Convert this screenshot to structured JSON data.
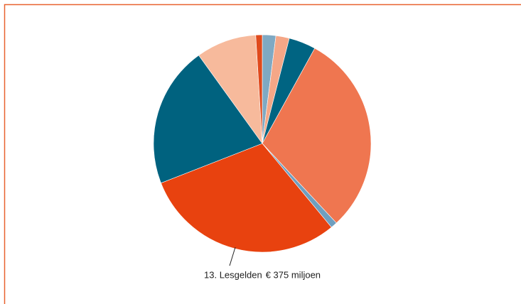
{
  "chart_data": {
    "type": "pie",
    "categories": [
      null,
      null,
      null,
      null,
      null,
      "13. Lesgelden",
      null,
      null,
      null
    ],
    "values": [
      25,
      25,
      50,
      375,
      12,
      375,
      262,
      112,
      12
    ],
    "value_labels": [
      null,
      null,
      null,
      null,
      null,
      "€ 375 miljoen",
      null,
      null,
      null
    ],
    "colors": [
      "#7fa9c3",
      "#f5a787",
      "#006482",
      "#ef7650",
      "#6f9fbf",
      "#e8420f",
      "#00627f",
      "#f7ba9c",
      "#e04a1c"
    ]
  }
}
